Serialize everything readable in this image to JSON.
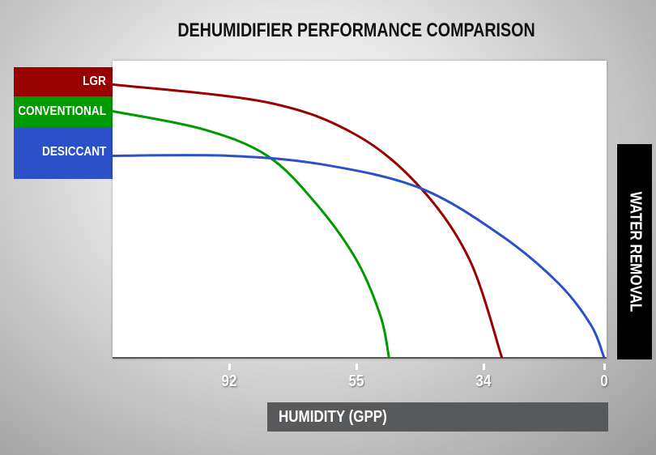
{
  "chart_data": {
    "type": "line",
    "title": "DEHUMIDIFIER PERFORMANCE COMPARISON",
    "xlabel": "HUMIDITY (GPP)",
    "ylabel": "WATER REMOVAL",
    "x_ticks": [
      92,
      55,
      34,
      0
    ],
    "x_direction": "decreasing",
    "x_scale": "non-linear, evenly spaced ticks",
    "y_ticks": [],
    "grid": false,
    "legend_placement": "left",
    "series": [
      {
        "name": "LGR",
        "color": "#990000",
        "points": [
          [
            126,
            92
          ],
          [
            81,
            86
          ],
          [
            55,
            75
          ],
          [
            44.3,
            57
          ],
          [
            36.3,
            33
          ],
          [
            28.8,
            0
          ]
        ]
      },
      {
        "name": "CONVENTIONAL",
        "color": "#009900",
        "points": [
          [
            126,
            83
          ],
          [
            99.8,
            77
          ],
          [
            80.9,
            68
          ],
          [
            66.8,
            52
          ],
          [
            55,
            33
          ],
          [
            51,
            14
          ],
          [
            49.6,
            0
          ]
        ]
      },
      {
        "name": "DESICCANT",
        "color": "#2b50c8",
        "points": [
          [
            126,
            68
          ],
          [
            92,
            68
          ],
          [
            64.4,
            65
          ],
          [
            44.3,
            57
          ],
          [
            28.8,
            41
          ],
          [
            12.8,
            25
          ],
          [
            3.7,
            11
          ],
          [
            0,
            0
          ]
        ]
      }
    ]
  }
}
